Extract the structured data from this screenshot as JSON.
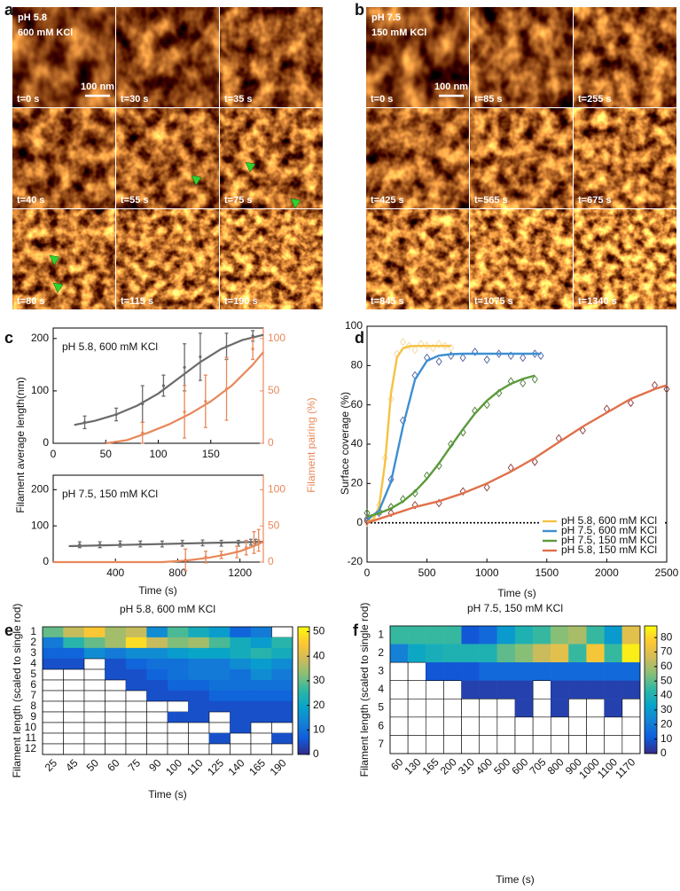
{
  "image_panels": [
    {
      "label": "a",
      "condition": [
        "pH 5.8",
        "600 mM KCl"
      ],
      "scale_bar": "100 nm",
      "frames": [
        "t=0 s",
        "t=30 s",
        "t=35 s",
        "t=40 s",
        "t=55 s",
        "t=75 s",
        "t=80 s",
        "t=115 s",
        "t=190 s"
      ]
    },
    {
      "label": "b",
      "condition": [
        "pH 7.5",
        "150 mM KCl"
      ],
      "scale_bar": "100 nm",
      "frames": [
        "t=0 s",
        "t=85 s",
        "t=255 s",
        "t=425 s",
        "t=565 s",
        "t=675 s",
        "t=845 s",
        "t=1075 s",
        "t=1340 s"
      ]
    }
  ],
  "chart_data": [
    {
      "type": "dual_line",
      "panel": "c",
      "annotation": "pH 5.8, 600 mM KCl",
      "y_label": "Filament average length(nm)",
      "y2_label": "Filament pairing (%)",
      "xlim": [
        0,
        200
      ],
      "xticks": [
        0,
        50,
        100,
        150
      ],
      "ylim": [
        0,
        220
      ],
      "yticks": [
        0,
        100,
        200
      ],
      "y2lim": [
        0,
        110
      ],
      "y2ticks": [
        0,
        50,
        100
      ],
      "series": [
        {
          "color": "#6b6b6b",
          "axis": "y",
          "x": [
            30,
            60,
            85,
            105,
            125,
            140,
            165,
            190
          ],
          "values": [
            40,
            55,
            75,
            110,
            145,
            165,
            185,
            205
          ],
          "errors": [
            12,
            12,
            35,
            20,
            45,
            45,
            25,
            10
          ],
          "fit_x": [
            20,
            40,
            60,
            80,
            100,
            120,
            140,
            160,
            180,
            200
          ],
          "fit": [
            35,
            43,
            55,
            72,
            95,
            125,
            155,
            180,
            197,
            207
          ]
        },
        {
          "color": "#e8885a",
          "axis": "y2",
          "x": [
            85,
            125,
            145,
            165,
            190
          ],
          "values": [
            10,
            30,
            40,
            52,
            90
          ],
          "errors": [
            10,
            25,
            25,
            30,
            10
          ],
          "fit_x": [
            50,
            70,
            90,
            110,
            130,
            150,
            170,
            190,
            200
          ],
          "fit": [
            0,
            3,
            10,
            18,
            28,
            40,
            55,
            75,
            87
          ]
        }
      ]
    },
    {
      "type": "dual_line",
      "annotation": "pH 7.5, 150 mM KCl",
      "x_label": "Time (s)",
      "xlim": [
        0,
        1350
      ],
      "xticks": [
        400,
        800,
        1200
      ],
      "ylim": [
        0,
        240
      ],
      "yticks": [
        0,
        100,
        200
      ],
      "y2lim": [
        0,
        120
      ],
      "y2ticks": [
        0,
        50,
        100
      ],
      "series": [
        {
          "color": "#6b6b6b",
          "axis": "y",
          "x": [
            170,
            300,
            430,
            560,
            700,
            830,
            960,
            1080,
            1190,
            1270,
            1300
          ],
          "values": [
            48,
            48,
            50,
            50,
            50,
            52,
            53,
            52,
            52,
            55,
            55
          ],
          "errors": [
            8,
            8,
            8,
            8,
            8,
            8,
            8,
            8,
            8,
            8,
            8
          ],
          "fit_x": [
            100,
            400,
            700,
            1000,
            1350
          ],
          "fit": [
            44,
            47,
            50,
            53,
            56
          ]
        },
        {
          "color": "#e8885a",
          "axis": "y2",
          "x": [
            850,
            980,
            1080,
            1180,
            1240,
            1290,
            1320
          ],
          "values": [
            3,
            7,
            10,
            14,
            20,
            27,
            30
          ],
          "errors": [
            15,
            8,
            5,
            8,
            10,
            15,
            15
          ],
          "fit_x": [
            0,
            400,
            700,
            850,
            1000,
            1100,
            1200,
            1300,
            1350
          ],
          "fit": [
            0,
            0,
            0,
            2,
            6,
            10,
            15,
            23,
            28
          ]
        }
      ]
    },
    {
      "type": "scatter_fit",
      "panel": "d",
      "y_label": "Surface coverage (%)",
      "x_label": "Time (s)",
      "xlim": [
        0,
        2500
      ],
      "xticks": [
        0,
        500,
        1000,
        1500,
        2000,
        2500
      ],
      "ylim": [
        -20,
        100
      ],
      "yticks": [
        -20,
        0,
        20,
        40,
        60,
        80,
        100
      ],
      "zero_line": true,
      "legend": "lower right",
      "series": [
        {
          "name": "pH 5.8, 600 mM KCl",
          "color": "#f5c242",
          "marker_color": "#f3d9a4",
          "x": [
            0,
            50,
            100,
            150,
            200,
            250,
            300,
            350,
            400,
            450,
            500,
            550,
            600,
            650,
            700
          ],
          "values": [
            0,
            2,
            9,
            33,
            63,
            86,
            92,
            90,
            88,
            91,
            90,
            89,
            91,
            90,
            89
          ],
          "fit": [
            0.3,
            1.6,
            8,
            30.5,
            65.7,
            84.2,
            88.8,
            89.8,
            90,
            90,
            90,
            90,
            90,
            90,
            90
          ]
        },
        {
          "name": "pH 7.5, 600 mM KCl",
          "color": "#3d8fd1",
          "marker_color": "#4c5d9e",
          "x": [
            0,
            100,
            200,
            300,
            400,
            500,
            600,
            700,
            800,
            900,
            1000,
            1100,
            1200,
            1300,
            1400,
            1450
          ],
          "values": [
            2,
            5,
            22,
            52,
            75,
            84,
            82,
            85,
            84,
            87,
            83,
            86,
            85,
            84,
            86,
            85
          ],
          "fit": [
            1.5,
            6.1,
            20.8,
            49.2,
            72.9,
            82.4,
            85.1,
            85.8,
            86,
            86,
            86,
            86,
            86,
            86,
            86,
            86
          ]
        },
        {
          "name": "pH 7.5, 150 mM KCl",
          "color": "#5b9a3a",
          "marker_color": "#4e7a3a",
          "x": [
            0,
            100,
            200,
            300,
            400,
            500,
            600,
            700,
            800,
            900,
            1000,
            1100,
            1200,
            1300,
            1400
          ],
          "values": [
            5,
            6,
            8,
            12,
            15,
            24,
            29,
            40,
            46,
            57,
            60,
            66,
            72,
            71,
            73
          ],
          "fit": [
            3.1,
            4.8,
            7.3,
            10.9,
            15.9,
            22.4,
            30.2,
            39,
            47.6,
            55.6,
            62.1,
            67.1,
            70.7,
            73.2,
            74.9
          ]
        },
        {
          "name": "pH 5.8, 150 mM KCl",
          "color": "#e0704a",
          "marker_color": "#8c3b3b",
          "x": [
            0,
            200,
            400,
            600,
            800,
            1000,
            1200,
            1400,
            1600,
            1800,
            2000,
            2200,
            2400,
            2500
          ],
          "values": [
            1,
            5,
            9,
            10,
            16,
            18,
            28,
            31,
            43,
            47,
            58,
            61,
            70,
            68
          ],
          "fit": [
            0,
            4,
            8,
            11,
            15,
            20,
            26,
            33,
            41,
            49,
            56,
            63,
            68,
            70
          ]
        }
      ]
    },
    {
      "type": "heatmap",
      "panel": "e",
      "title": "pH 5.8, 600 mM KCl",
      "x_label": "Time (s)",
      "y_label": "Filament length (scaled to single rod)",
      "colormap": "parula",
      "clim": [
        0,
        52
      ],
      "cticks": [
        0,
        10,
        20,
        30,
        40,
        50
      ],
      "categories": [
        "25",
        "45",
        "50",
        "60",
        "75",
        "90",
        "100",
        "110",
        "125",
        "140",
        "165",
        "190"
      ],
      "rows": [
        "1",
        "2",
        "3",
        "4",
        "5",
        "6",
        "7",
        "8",
        "9",
        "10",
        "11",
        "12"
      ],
      "values": [
        [
          30,
          38,
          45,
          35,
          38,
          15,
          28,
          22,
          18,
          8,
          12,
          null
        ],
        [
          12,
          25,
          30,
          35,
          48,
          38,
          32,
          35,
          28,
          22,
          18,
          25
        ],
        [
          8,
          8,
          15,
          12,
          15,
          15,
          18,
          20,
          20,
          22,
          25,
          22
        ],
        [
          5,
          5,
          null,
          5,
          8,
          10,
          10,
          12,
          12,
          15,
          18,
          15
        ],
        [
          null,
          null,
          null,
          5,
          5,
          8,
          10,
          12,
          12,
          10,
          15,
          12
        ],
        [
          null,
          null,
          null,
          null,
          5,
          5,
          8,
          8,
          10,
          10,
          10,
          10
        ],
        [
          null,
          null,
          null,
          null,
          null,
          5,
          5,
          5,
          8,
          8,
          8,
          8
        ],
        [
          null,
          null,
          null,
          null,
          null,
          null,
          null,
          5,
          5,
          5,
          5,
          5
        ],
        [
          null,
          null,
          null,
          null,
          null,
          null,
          5,
          5,
          null,
          5,
          5,
          5
        ],
        [
          null,
          null,
          null,
          null,
          null,
          null,
          null,
          null,
          null,
          5,
          null,
          null
        ],
        [
          null,
          null,
          null,
          null,
          null,
          null,
          null,
          null,
          5,
          null,
          null,
          5
        ],
        [
          null,
          null,
          null,
          null,
          null,
          null,
          null,
          null,
          null,
          null,
          null,
          null
        ]
      ]
    },
    {
      "type": "heatmap",
      "panel": "f",
      "title": "pH 7.5, 150 mM KCl",
      "x_label": "Time (s)",
      "y_label": "Filament length (scaled to single rod)",
      "colormap": "parula",
      "clim": [
        0,
        88
      ],
      "cticks": [
        0,
        10,
        20,
        30,
        40,
        50,
        60,
        70,
        80
      ],
      "categories": [
        "60",
        "130",
        "165",
        "200",
        "310",
        "400",
        "500",
        "600",
        "705",
        "800",
        "900",
        "1000",
        "1100",
        "1170"
      ],
      "rows": [
        "1",
        "2",
        "3",
        "4",
        "5",
        "6",
        "7"
      ],
      "values": [
        [
          45,
          45,
          45,
          45,
          10,
          15,
          30,
          40,
          45,
          55,
          60,
          45,
          30,
          70
        ],
        [
          22,
          35,
          38,
          40,
          40,
          40,
          50,
          55,
          65,
          70,
          45,
          75,
          45,
          85
        ],
        [
          null,
          null,
          10,
          10,
          10,
          15,
          15,
          15,
          15,
          15,
          15,
          15,
          15,
          15
        ],
        [
          null,
          null,
          null,
          null,
          5,
          5,
          5,
          5,
          null,
          5,
          5,
          5,
          5,
          5
        ],
        [
          null,
          null,
          null,
          null,
          null,
          null,
          null,
          5,
          null,
          5,
          null,
          null,
          5,
          null
        ],
        [
          null,
          null,
          null,
          null,
          null,
          null,
          null,
          null,
          null,
          null,
          null,
          null,
          null,
          null
        ],
        [
          null,
          null,
          null,
          null,
          null,
          null,
          null,
          null,
          null,
          null,
          null,
          null,
          null,
          null
        ]
      ]
    }
  ]
}
